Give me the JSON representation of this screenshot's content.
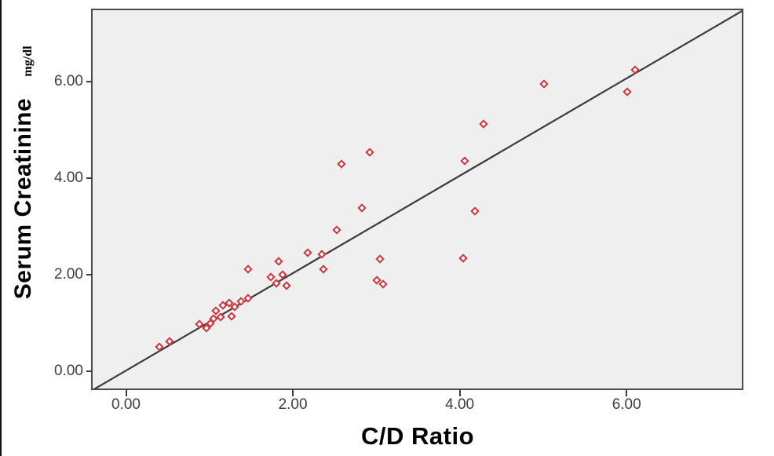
{
  "chart_data": {
    "type": "scatter",
    "title": "",
    "xlabel": "C/D Ratio",
    "ylabel": "Serum Creatinine",
    "ylabel_unit": "mg/dl",
    "xlim": [
      -0.4,
      7.4
    ],
    "ylim": [
      -0.39,
      7.48
    ],
    "xticks": [
      0,
      2,
      4,
      6
    ],
    "xtick_labels": [
      "0.00",
      "2.00",
      "4.00",
      "6.00"
    ],
    "yticks": [
      0,
      2,
      4,
      6
    ],
    "ytick_labels": [
      "0.00",
      "2.00",
      "4.00",
      "6.00"
    ],
    "grid": false,
    "legend": null,
    "reference_line": {
      "name": "identity-line",
      "x1": -0.4,
      "y1": -0.39,
      "x2": 7.4,
      "y2": 7.48
    },
    "marker": {
      "shape": "open-diamond",
      "color": "#cb3339"
    },
    "points": [
      [
        0.4,
        0.5
      ],
      [
        0.52,
        0.62
      ],
      [
        0.88,
        0.98
      ],
      [
        0.96,
        0.9
      ],
      [
        1.01,
        1.0
      ],
      [
        1.05,
        1.09
      ],
      [
        1.13,
        1.13
      ],
      [
        1.08,
        1.25
      ],
      [
        1.16,
        1.37
      ],
      [
        1.24,
        1.41
      ],
      [
        1.3,
        1.33
      ],
      [
        1.27,
        1.14
      ],
      [
        1.38,
        1.45
      ],
      [
        1.46,
        1.52
      ],
      [
        1.46,
        2.11
      ],
      [
        1.74,
        1.95
      ],
      [
        1.88,
        2.0
      ],
      [
        1.8,
        1.82
      ],
      [
        1.92,
        1.78
      ],
      [
        1.83,
        2.27
      ],
      [
        2.18,
        2.45
      ],
      [
        2.35,
        2.43
      ],
      [
        2.37,
        2.12
      ],
      [
        2.53,
        2.93
      ],
      [
        2.58,
        4.29
      ],
      [
        2.83,
        3.39
      ],
      [
        2.92,
        4.54
      ],
      [
        3.01,
        1.88
      ],
      [
        3.08,
        1.8
      ],
      [
        3.04,
        2.33
      ],
      [
        4.04,
        2.34
      ],
      [
        4.18,
        3.32
      ],
      [
        4.06,
        4.36
      ],
      [
        4.29,
        5.12
      ],
      [
        5.01,
        5.95
      ],
      [
        6.01,
        5.79
      ],
      [
        6.1,
        6.25
      ]
    ]
  },
  "style": {
    "plot_background": "#f0eff0",
    "frame_color": "#4b4b4b",
    "line_color": "#3a3a3a",
    "marker_color": "#cb3339",
    "tick_label_color": "#3e3e3e"
  }
}
